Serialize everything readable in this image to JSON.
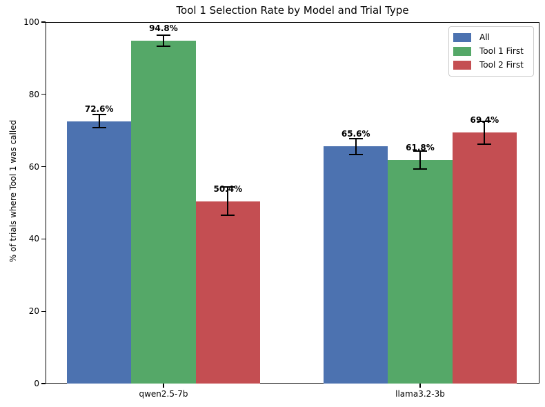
{
  "chart_data": {
    "type": "bar",
    "title": "Tool 1 Selection Rate by Model and Trial Type",
    "xlabel": "",
    "ylabel": "% of trials where Tool 1 was called",
    "categories": [
      "qwen2.5-7b",
      "llama3.2-3b"
    ],
    "series": [
      {
        "name": "All",
        "color": "#4C72B0",
        "values": [
          72.6,
          65.6
        ],
        "errors": [
          1.8,
          2.2
        ],
        "bar_labels": [
          "72.6%",
          "65.6%"
        ]
      },
      {
        "name": "Tool 1 First",
        "color": "#55A868",
        "values": [
          94.8,
          61.8
        ],
        "errors": [
          1.5,
          2.5
        ],
        "bar_labels": [
          "94.8%",
          "61.8%"
        ]
      },
      {
        "name": "Tool 2 First",
        "color": "#C44E52",
        "values": [
          50.4,
          69.4
        ],
        "errors": [
          3.9,
          3.2
        ],
        "bar_labels": [
          "50.4%",
          "69.4%"
        ]
      }
    ],
    "ylim": [
      0,
      100
    ],
    "yticks": [
      0,
      20,
      40,
      60,
      80,
      100
    ],
    "grid": false,
    "legend_position": "upper right",
    "legend_entries": [
      "All",
      "Tool 1 First",
      "Tool 2 First"
    ],
    "error_bar_color": "#000000",
    "background_color": "#ffffff",
    "text_color": "#000000"
  }
}
